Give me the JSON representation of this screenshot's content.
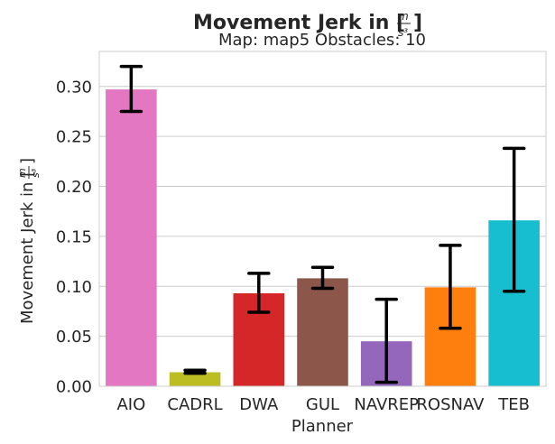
{
  "chart_data": {
    "type": "bar",
    "title": "Movement Jerk in [m/s³]",
    "subtitle": "Map: map5 Obstacles: 10",
    "xlabel": "Planner",
    "ylabel": "Movement Jerk in [m/s³]",
    "ylim": [
      0,
      0.335
    ],
    "yticks": [
      "0.00",
      "0.05",
      "0.10",
      "0.15",
      "0.20",
      "0.25",
      "0.30"
    ],
    "grid": true,
    "categories": [
      "AIO",
      "CADRL",
      "DWA",
      "GUL",
      "NAVREP",
      "ROSNAV",
      "TEB"
    ],
    "values": [
      0.297,
      0.014,
      0.093,
      0.108,
      0.045,
      0.099,
      0.166
    ],
    "error_low": [
      0.275,
      0.013,
      0.074,
      0.098,
      0.004,
      0.058,
      0.095
    ],
    "error_high": [
      0.32,
      0.016,
      0.113,
      0.119,
      0.087,
      0.141,
      0.238
    ],
    "colors": [
      "#e377c2",
      "#bcbd22",
      "#d62728",
      "#8c564b",
      "#9467bd",
      "#ff7f0e",
      "#17becf"
    ]
  }
}
